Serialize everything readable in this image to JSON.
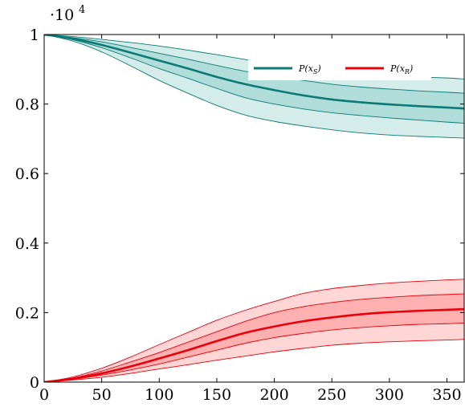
{
  "chart_data": {
    "type": "area",
    "title": "",
    "xlabel": "",
    "ylabel": "",
    "xlim": [
      0,
      365
    ],
    "ylim": [
      0,
      1
    ],
    "y_multiplier": {
      "base": "·10",
      "exponent": "4"
    },
    "x_ticks": [
      0,
      50,
      100,
      150,
      200,
      250,
      300,
      350
    ],
    "x_tick_labels": [
      "0",
      "50",
      "100",
      "150",
      "200",
      "250",
      "300",
      "350"
    ],
    "y_ticks": [
      0,
      0.2,
      0.4,
      0.6,
      0.8,
      1
    ],
    "y_tick_labels": [
      "0",
      "0.2",
      "0.4",
      "0.6",
      "0.8",
      "1"
    ],
    "grid": false,
    "legend_position": "top-right",
    "x": [
      0,
      25,
      50,
      75,
      100,
      125,
      150,
      175,
      200,
      225,
      250,
      275,
      300,
      325,
      350,
      365
    ],
    "series": [
      {
        "name": "P(x_S)",
        "legend_label": "P(x",
        "legend_sub": "S",
        "color": "#0b7a75",
        "band_outer_color": "#d4ecea",
        "band_inner_color": "#b0dcd9",
        "mean": [
          1.0,
          0.988,
          0.97,
          0.948,
          0.925,
          0.902,
          0.878,
          0.857,
          0.84,
          0.825,
          0.813,
          0.805,
          0.799,
          0.794,
          0.79,
          0.787
        ],
        "inner_upper": [
          1.0,
          0.991,
          0.979,
          0.963,
          0.946,
          0.929,
          0.911,
          0.894,
          0.88,
          0.868,
          0.857,
          0.849,
          0.843,
          0.838,
          0.834,
          0.831
        ],
        "inner_lower": [
          1.0,
          0.985,
          0.962,
          0.933,
          0.902,
          0.874,
          0.845,
          0.818,
          0.8,
          0.786,
          0.775,
          0.767,
          0.76,
          0.754,
          0.748,
          0.745
        ],
        "outer_upper": [
          1.0,
          0.994,
          0.986,
          0.977,
          0.967,
          0.955,
          0.942,
          0.928,
          0.915,
          0.904,
          0.895,
          0.888,
          0.882,
          0.878,
          0.875,
          0.872
        ],
        "outer_lower": [
          1.0,
          0.981,
          0.95,
          0.91,
          0.868,
          0.831,
          0.796,
          0.768,
          0.75,
          0.737,
          0.726,
          0.717,
          0.711,
          0.707,
          0.704,
          0.702
        ]
      },
      {
        "name": "P(x_R)",
        "legend_label": "P(x",
        "legend_sub": "R",
        "color": "#e8000b",
        "band_outer_color": "#ffd6d6",
        "band_inner_color": "#ffb0b0",
        "mean": [
          0.0,
          0.01,
          0.025,
          0.045,
          0.068,
          0.092,
          0.118,
          0.142,
          0.16,
          0.175,
          0.186,
          0.195,
          0.201,
          0.205,
          0.208,
          0.21
        ],
        "inner_upper": [
          0.0,
          0.012,
          0.032,
          0.058,
          0.085,
          0.115,
          0.145,
          0.175,
          0.2,
          0.217,
          0.229,
          0.238,
          0.244,
          0.249,
          0.252,
          0.254
        ],
        "inner_lower": [
          0.0,
          0.008,
          0.02,
          0.035,
          0.052,
          0.072,
          0.092,
          0.112,
          0.128,
          0.14,
          0.15,
          0.157,
          0.162,
          0.166,
          0.168,
          0.17
        ],
        "outer_upper": [
          0.0,
          0.015,
          0.04,
          0.072,
          0.108,
          0.143,
          0.178,
          0.207,
          0.232,
          0.255,
          0.269,
          0.278,
          0.285,
          0.29,
          0.294,
          0.296
        ],
        "outer_lower": [
          0.0,
          0.006,
          0.014,
          0.025,
          0.038,
          0.05,
          0.063,
          0.075,
          0.087,
          0.097,
          0.106,
          0.112,
          0.116,
          0.119,
          0.121,
          0.123
        ]
      }
    ]
  }
}
